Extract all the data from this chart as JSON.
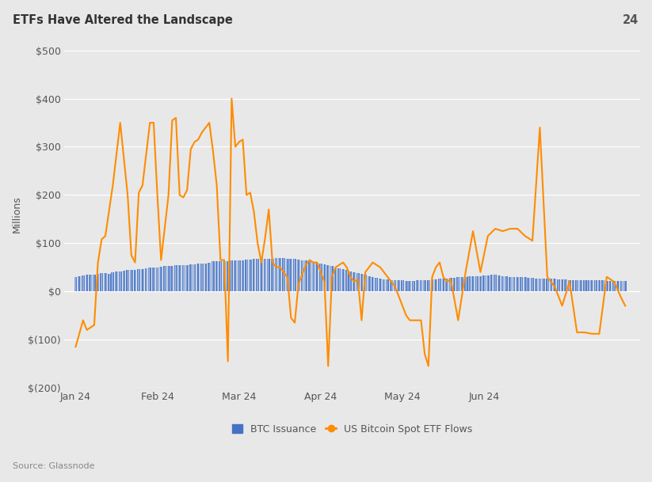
{
  "title": "ETFs Have Altered the Landscape",
  "page_num": "24",
  "ylabel": "Millions",
  "source": "Source: Glassnode",
  "legend_btc": "BTC Issuance",
  "legend_etf": "US Bitcoin Spot ETF Flows",
  "background_color": "#e8e8e8",
  "plot_bg_color": "#e8e8e8",
  "ylim": [
    -200,
    520
  ],
  "yticks": [
    -200,
    -100,
    0,
    100,
    200,
    300,
    400,
    500
  ],
  "ytick_labels": [
    "$(200)",
    "$(100)",
    "$0",
    "$100",
    "$200",
    "$300",
    "$400",
    "$500"
  ],
  "btc_color": "#4472C4",
  "etf_color": "#FF8C00",
  "btc_bar_width": 0.8,
  "dates_btc": [
    0,
    1,
    2,
    3,
    4,
    5,
    6,
    7,
    8,
    9,
    10,
    11,
    12,
    13,
    14,
    15,
    16,
    17,
    18,
    19,
    20,
    21,
    22,
    23,
    24,
    25,
    26,
    27,
    28,
    29,
    30,
    31,
    32,
    33,
    34,
    35,
    36,
    37,
    38,
    39,
    40,
    41,
    42,
    43,
    44,
    45,
    46,
    47,
    48,
    49,
    50,
    51,
    52,
    53,
    54,
    55,
    56,
    57,
    58,
    59,
    60,
    61,
    62,
    63,
    64,
    65,
    66,
    67,
    68,
    69,
    70,
    71,
    72,
    73,
    74,
    75,
    76,
    77,
    78,
    79,
    80,
    81,
    82,
    83,
    84,
    85,
    86,
    87,
    88,
    89,
    90,
    91,
    92,
    93,
    94,
    95,
    96,
    97,
    98,
    99,
    100,
    101,
    102,
    103,
    104,
    105,
    106,
    107,
    108,
    109,
    110,
    111,
    112,
    113,
    114,
    115,
    116,
    117,
    118,
    119,
    120,
    121,
    122,
    123,
    124,
    125,
    126,
    127,
    128,
    129,
    130,
    131,
    132,
    133,
    134,
    135,
    136,
    137,
    138,
    139,
    140,
    141,
    142,
    143,
    144,
    145,
    146,
    147,
    148
  ],
  "btc_values": [
    30,
    32,
    33,
    35,
    35,
    34,
    36,
    38,
    38,
    37,
    40,
    42,
    42,
    43,
    44,
    44,
    45,
    47,
    47,
    48,
    49,
    50,
    50,
    51,
    52,
    52,
    53,
    54,
    54,
    55,
    55,
    56,
    56,
    57,
    58,
    58,
    60,
    62,
    62,
    63,
    63,
    63,
    64,
    64,
    65,
    65,
    66,
    66,
    67,
    67,
    67,
    68,
    68,
    68,
    69,
    69,
    69,
    68,
    68,
    67,
    66,
    65,
    64,
    63,
    61,
    60,
    58,
    56,
    54,
    52,
    50,
    48,
    46,
    44,
    42,
    40,
    38,
    36,
    34,
    32,
    30,
    28,
    26,
    25,
    25,
    24,
    24,
    23,
    23,
    22,
    22,
    22,
    23,
    23,
    24,
    24,
    25,
    25,
    26,
    26,
    27,
    28,
    28,
    29,
    30,
    30,
    31,
    31,
    32,
    32,
    33,
    33,
    34,
    34,
    33,
    32,
    31,
    30,
    30,
    29,
    29,
    29,
    28,
    28,
    27,
    27,
    27,
    26,
    26,
    26,
    25,
    25,
    25,
    24,
    24,
    24,
    24,
    24,
    24,
    23,
    23,
    23,
    23,
    22,
    22,
    22,
    22,
    21,
    21
  ],
  "etf_x": [
    0,
    2,
    3,
    5,
    6,
    7,
    8,
    10,
    12,
    14,
    15,
    16,
    17,
    18,
    20,
    21,
    22,
    23,
    25,
    26,
    27,
    28,
    29,
    30,
    31,
    32,
    33,
    34,
    36,
    37,
    38,
    39,
    40,
    41,
    42,
    43,
    44,
    45,
    46,
    47,
    48,
    49,
    50,
    51,
    52,
    53,
    54,
    55,
    56,
    57,
    58,
    59,
    60,
    61,
    62,
    63,
    64,
    65,
    66,
    67,
    68,
    69,
    70,
    71,
    72,
    73,
    74,
    75,
    76,
    77,
    78,
    79,
    80,
    81,
    82,
    83,
    84,
    85,
    86,
    87,
    88,
    89,
    90,
    91,
    92,
    93,
    94,
    95,
    96,
    97,
    98,
    99,
    100,
    101,
    103,
    105,
    107,
    109,
    111,
    113,
    115,
    117,
    119,
    121,
    123,
    125,
    127,
    129,
    131,
    133,
    135,
    137,
    139,
    141,
    143,
    145,
    147,
    148
  ],
  "etf_y": [
    -115,
    -60,
    -80,
    -70,
    60,
    108,
    115,
    220,
    350,
    200,
    75,
    60,
    205,
    220,
    350,
    350,
    200,
    65,
    200,
    355,
    360,
    200,
    195,
    210,
    295,
    310,
    315,
    330,
    350,
    290,
    220,
    65,
    65,
    -145,
    400,
    300,
    310,
    315,
    200,
    205,
    165,
    100,
    60,
    110,
    170,
    60,
    50,
    50,
    40,
    30,
    -55,
    -65,
    15,
    35,
    55,
    65,
    60,
    60,
    40,
    20,
    -155,
    30,
    50,
    55,
    60,
    50,
    30,
    20,
    25,
    -60,
    40,
    50,
    60,
    55,
    50,
    40,
    30,
    20,
    10,
    -10,
    -30,
    -50,
    -60,
    -60,
    -60,
    -60,
    -130,
    -155,
    30,
    50,
    60,
    30,
    20,
    25,
    -60,
    40,
    125,
    40,
    115,
    130,
    125,
    130,
    130,
    115,
    105,
    340,
    30,
    10,
    -30,
    20,
    -85,
    -85,
    -88,
    -88,
    30,
    20,
    -15,
    -30
  ],
  "xtick_positions": [
    0,
    22,
    44,
    66,
    88,
    110,
    131,
    148
  ],
  "xtick_labels": [
    "Jan 24",
    "Feb 24",
    "Mar 24",
    "Apr 24",
    "May 24",
    "Jun 24",
    "",
    ""
  ]
}
